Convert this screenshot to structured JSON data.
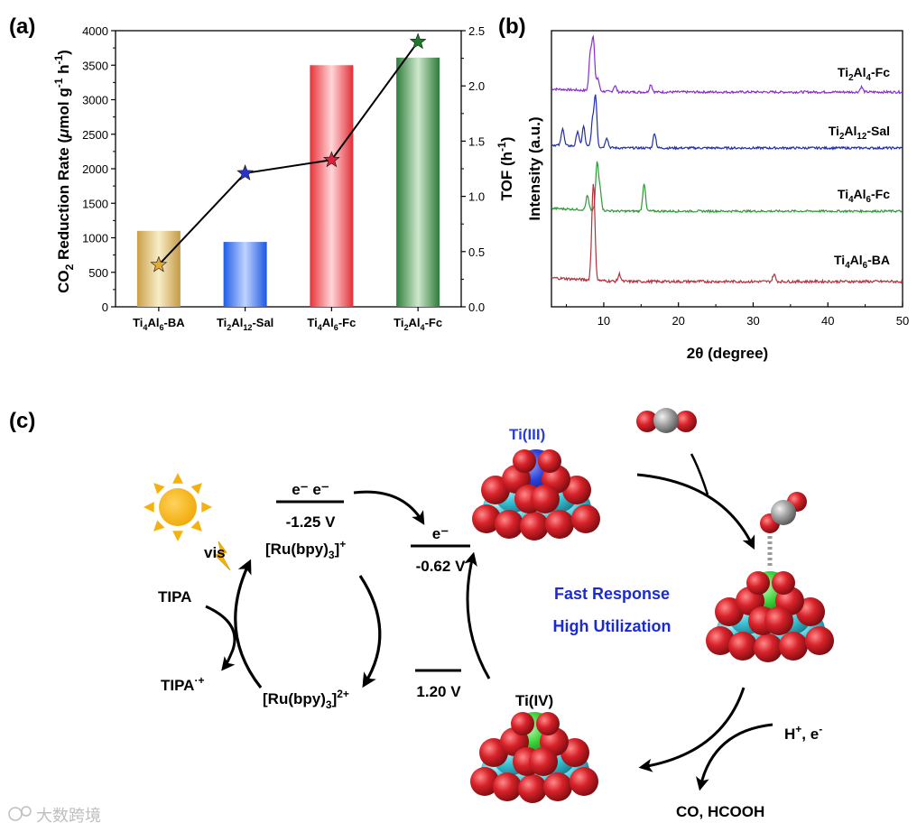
{
  "panels": {
    "a": "(a)",
    "b": "(b)",
    "c": "(c)"
  },
  "chart_data": [
    {
      "type": "bar",
      "panel": "(a)",
      "categories": [
        "Ti4Al6-BA",
        "Ti2Al12-Sal",
        "Ti4Al6-Fc",
        "Ti2Al4-Fc"
      ],
      "category_labels": [
        {
          "base": "Ti",
          "s1": "4",
          "mid": "Al",
          "s2": "6",
          "tail": "-BA"
        },
        {
          "base": "Ti",
          "s1": "2",
          "mid": "Al",
          "s2": "12",
          "tail": "-Sal"
        },
        {
          "base": "Ti",
          "s1": "4",
          "mid": "Al",
          "s2": "6",
          "tail": "-Fc"
        },
        {
          "base": "Ti",
          "s1": "2",
          "mid": "Al",
          "s2": "4",
          "tail": "-Fc"
        }
      ],
      "series": [
        {
          "axis": "left",
          "kind": "bar",
          "values": [
            1100,
            940,
            3500,
            3610
          ]
        },
        {
          "axis": "right",
          "kind": "line-star",
          "values": [
            0.38,
            1.21,
            1.33,
            2.4
          ]
        }
      ],
      "bar_colors": [
        "#d8b25a",
        "#2f6df0",
        "#ee3c45",
        "#3a8c45"
      ],
      "star_colors": [
        "#e0a93a",
        "#2b33c9",
        "#d9233a",
        "#1f7a2c"
      ],
      "ylabel": {
        "pre": "CO",
        "sub": "2",
        "mid": " Reduction Rate (",
        "mu": "μ",
        "post": "mol g",
        "sup1": "-1",
        "post2": " h",
        "sup2": "-1",
        "end": ")"
      },
      "y2label": {
        "pre": "TOF (h",
        "sup": "-1",
        "end": ")"
      },
      "ylim": [
        0,
        4000
      ],
      "y2lim": [
        0,
        2.5
      ],
      "yticks": [
        "0",
        "500",
        "1000",
        "1500",
        "2000",
        "2500",
        "3000",
        "3500",
        "4000"
      ],
      "y2ticks": [
        "0.0",
        "0.5",
        "1.0",
        "1.5",
        "2.0",
        "2.5"
      ]
    },
    {
      "type": "line",
      "panel": "(b)",
      "xlabel": "2θ (degree)",
      "ylabel": "Intensity (a.u.)",
      "xlim": [
        3,
        50
      ],
      "xticks": [
        "10",
        "20",
        "30",
        "40",
        "50"
      ],
      "series": [
        {
          "label": {
            "base": "Ti",
            "s1": "2",
            "mid": "Al",
            "s2": "4",
            "tail": "-Fc"
          },
          "color": "#8a2fc6",
          "peaks": [
            [
              8.2,
              0.7
            ],
            [
              8.6,
              1.0
            ],
            [
              9.2,
              0.25
            ],
            [
              11.5,
              0.12
            ],
            [
              16.3,
              0.15
            ],
            [
              44.5,
              0.1
            ]
          ]
        },
        {
          "label": {
            "base": "Ti",
            "s1": "2",
            "mid": "Al",
            "s2": "12",
            "tail": "-Sal"
          },
          "color": "#1f2fa8",
          "peaks": [
            [
              4.5,
              0.35
            ],
            [
              6.5,
              0.3
            ],
            [
              7.3,
              0.4
            ],
            [
              8.5,
              0.5
            ],
            [
              8.9,
              1.0
            ],
            [
              10.4,
              0.2
            ],
            [
              16.8,
              0.3
            ]
          ]
        },
        {
          "label": {
            "base": "Ti",
            "s1": "4",
            "mid": "Al",
            "s2": "6",
            "tail": "-Fc"
          },
          "color": "#2b9a36",
          "peaks": [
            [
              7.8,
              0.3
            ],
            [
              9.1,
              1.0
            ],
            [
              9.5,
              0.45
            ],
            [
              15.4,
              0.6
            ]
          ]
        },
        {
          "label": {
            "base": "Ti",
            "s1": "4",
            "mid": "Al",
            "s2": "6",
            "tail": "-BA"
          },
          "color": "#b0323c",
          "peaks": [
            [
              8.5,
              0.85
            ],
            [
              8.7,
              1.0
            ],
            [
              12.1,
              0.12
            ],
            [
              32.8,
              0.12
            ]
          ]
        }
      ]
    }
  ],
  "scheme": {
    "level_top_label": "e⁻ e⁻",
    "level_top_value": "-1.25 V",
    "ru_plus": {
      "pre": "[Ru(bpy)",
      "sub": "3",
      "post": "]",
      "sup": "+"
    },
    "level_mid_label": "e⁻",
    "level_mid_value": "-0.62 V",
    "vis": "vis",
    "tipa": "TIPA",
    "tipa_ox": {
      "pre": "TIPA",
      "sup": "·+"
    },
    "ru_2plus": {
      "pre": "[Ru(bpy)",
      "sub": "3",
      "post": "]",
      "sup": "2+"
    },
    "level_low_value": "1.20 V",
    "ti3": "Ti(III)",
    "ti4": "Ti(IV)",
    "fast_response": "Fast Response",
    "high_utilization": "High Utilization",
    "protons": {
      "pre": "H",
      "sup": "+",
      "post": ", e",
      "sup2": "-"
    },
    "products": "CO, HCOOH"
  },
  "colors": {
    "ti3": "#2b3fd6",
    "ti4": "#000000",
    "highlight": "#1a2bd1",
    "oxygen": "#d1232a",
    "aluminium": "#3ec6d8",
    "ti3_atom": "#2a40d8",
    "ti4_atom": "#3cd23a",
    "carbon": "#9a9a9a",
    "sun": "#f5b20f"
  },
  "watermark": "大数跨境"
}
